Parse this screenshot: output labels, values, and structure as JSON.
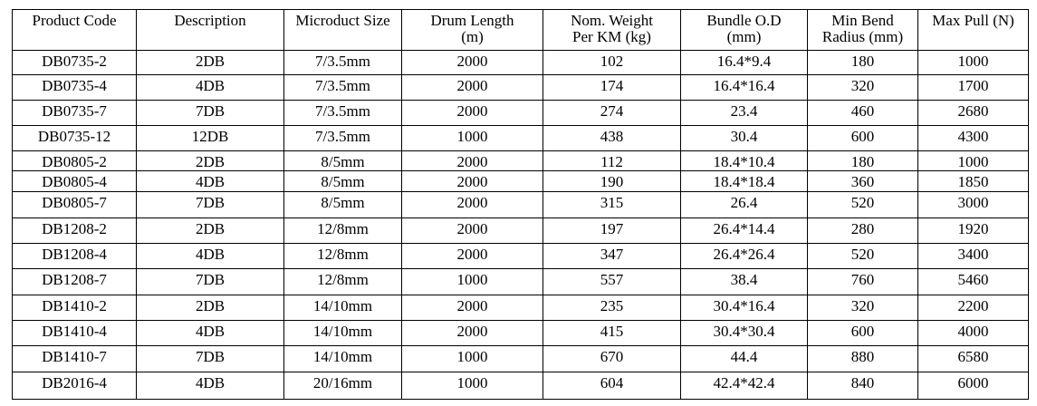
{
  "table": {
    "header": [
      [
        "Product Code"
      ],
      [
        "Description"
      ],
      [
        "Microduct Size"
      ],
      [
        "Drum Length",
        "(m)"
      ],
      [
        "Nom. Weight",
        "Per KM (kg)"
      ],
      [
        "Bundle O.D",
        "(mm)"
      ],
      [
        "Min Bend",
        "Radius (mm)"
      ],
      [
        "Max Pull (N)"
      ]
    ],
    "rows": [
      [
        "DB0735-2",
        "2DB",
        "7/3.5mm",
        "2000",
        "102",
        "16.4*9.4",
        "180",
        "1000"
      ],
      [
        "DB0735-4",
        "4DB",
        "7/3.5mm",
        "2000",
        "174",
        "16.4*16.4",
        "320",
        "1700"
      ],
      [
        "DB0735-7",
        "7DB",
        "7/3.5mm",
        "2000",
        "274",
        "23.4",
        "460",
        "2680"
      ],
      [
        "DB0735-12",
        "12DB",
        "7/3.5mm",
        "1000",
        "438",
        "30.4",
        "600",
        "4300"
      ],
      [
        "DB0805-2",
        "2DB",
        "8/5mm",
        "2000",
        "112",
        "18.4*10.4",
        "180",
        "1000"
      ],
      [
        "DB0805-4",
        "4DB",
        "8/5mm",
        "2000",
        "190",
        "18.4*18.4",
        "360",
        "1850"
      ],
      [
        "DB0805-7",
        "7DB",
        "8/5mm",
        "2000",
        "315",
        "26.4",
        "520",
        "3000"
      ],
      [
        "DB1208-2",
        "2DB",
        "12/8mm",
        "2000",
        "197",
        "26.4*14.4",
        "280",
        "1920"
      ],
      [
        "DB1208-4",
        "4DB",
        "12/8mm",
        "2000",
        "347",
        "26.4*26.4",
        "520",
        "3400"
      ],
      [
        "DB1208-7",
        "7DB",
        "12/8mm",
        "1000",
        "557",
        "38.4",
        "760",
        "5460"
      ],
      [
        "DB1410-2",
        "2DB",
        "14/10mm",
        "2000",
        "235",
        "30.4*16.4",
        "320",
        "2200"
      ],
      [
        "DB1410-4",
        "4DB",
        "14/10mm",
        "2000",
        "415",
        "30.4*30.4",
        "600",
        "4000"
      ],
      [
        "DB1410-7",
        "7DB",
        "14/10mm",
        "1000",
        "670",
        "44.4",
        "880",
        "6580"
      ],
      [
        "DB2016-4",
        "4DB",
        "20/16mm",
        "1000",
        "604",
        "42.4*42.4",
        "840",
        "6000"
      ]
    ]
  }
}
